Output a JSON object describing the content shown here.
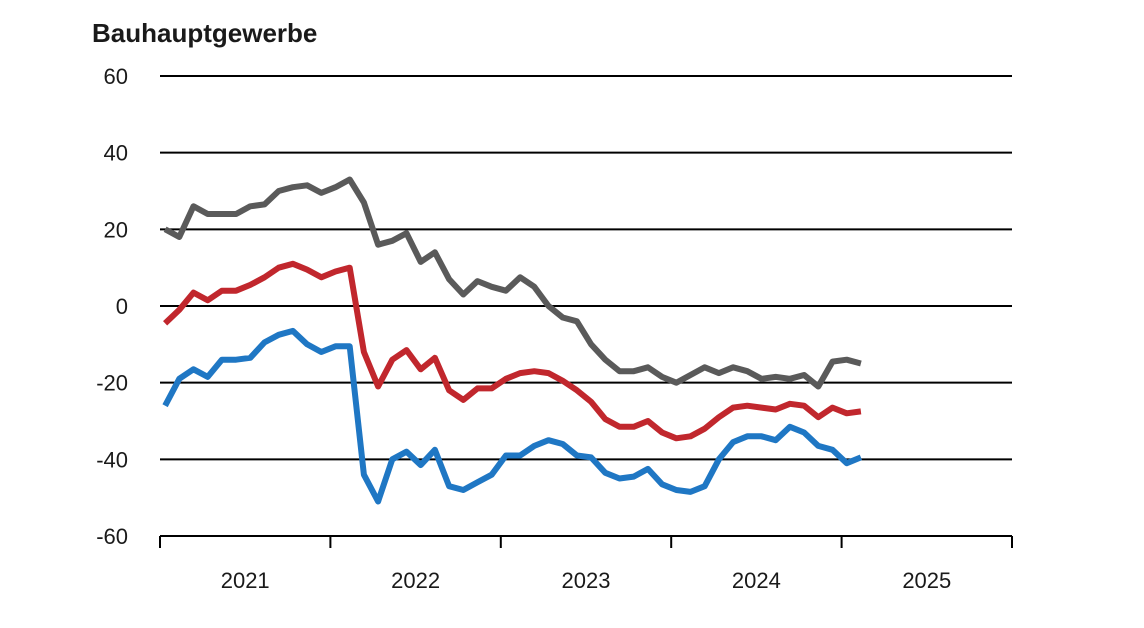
{
  "chart_data": {
    "type": "line",
    "title": "Bauhauptgewerbe",
    "ylim": [
      -60,
      60
    ],
    "yticks": [
      60,
      40,
      20,
      0,
      -20,
      -40,
      -60
    ],
    "yticklabels": [
      "60",
      "40",
      "20",
      "0",
      "-20",
      "-40",
      "-60"
    ],
    "xlim": [
      2021.0,
      2026.0
    ],
    "xticklabels": [
      "2021",
      "2022",
      "2023",
      "2024",
      "2025"
    ],
    "grid": true,
    "series": [
      {
        "color": "#5a5a5a",
        "values": [
          20,
          18,
          26,
          24,
          24,
          24,
          26,
          26.5,
          30,
          31,
          31.5,
          29.5,
          31,
          33,
          27,
          16,
          17,
          19,
          11.5,
          14,
          7,
          3,
          6.5,
          5,
          4,
          7.5,
          5,
          0,
          -3,
          -4,
          -10,
          -14,
          -17,
          -17,
          -16,
          -18.5,
          -20,
          -18,
          -16,
          -17.5,
          -16,
          -17,
          -19,
          -18.5,
          -19,
          -18,
          -21,
          -14.5,
          -14,
          -15
        ]
      },
      {
        "color": "#c1272d",
        "values": [
          -4.5,
          -1,
          3.5,
          1.5,
          4,
          4,
          5.5,
          7.5,
          10,
          11,
          9.5,
          7.5,
          9,
          10,
          -12,
          -21,
          -14,
          -11.5,
          -16.5,
          -13.5,
          -22,
          -24.5,
          -21.5,
          -21.5,
          -19,
          -17.5,
          -17,
          -17.5,
          -19.5,
          -22,
          -25,
          -29.5,
          -31.5,
          -31.5,
          -30,
          -33,
          -34.5,
          -34,
          -32,
          -29,
          -26.5,
          -26,
          -26.5,
          -27,
          -25.5,
          -26,
          -29,
          -26.5,
          -28,
          -27.5
        ]
      },
      {
        "color": "#1f77c4",
        "values": [
          -26,
          -19,
          -16.5,
          -18.5,
          -14,
          -14,
          -13.5,
          -9.5,
          -7.5,
          -6.5,
          -10,
          -12,
          -10.5,
          -10.5,
          -44,
          -51,
          -40,
          -38,
          -41.5,
          -37.5,
          -47,
          -48,
          -46,
          -44,
          -39,
          -39,
          -36.5,
          -35,
          -36,
          -39,
          -39.5,
          -43.5,
          -45,
          -44.5,
          -42.5,
          -46.5,
          -48,
          -48.5,
          -47,
          -40,
          -35.5,
          -34,
          -34,
          -35,
          -31.5,
          -33,
          -36.5,
          -37.5,
          -41,
          -39.5
        ]
      }
    ]
  }
}
